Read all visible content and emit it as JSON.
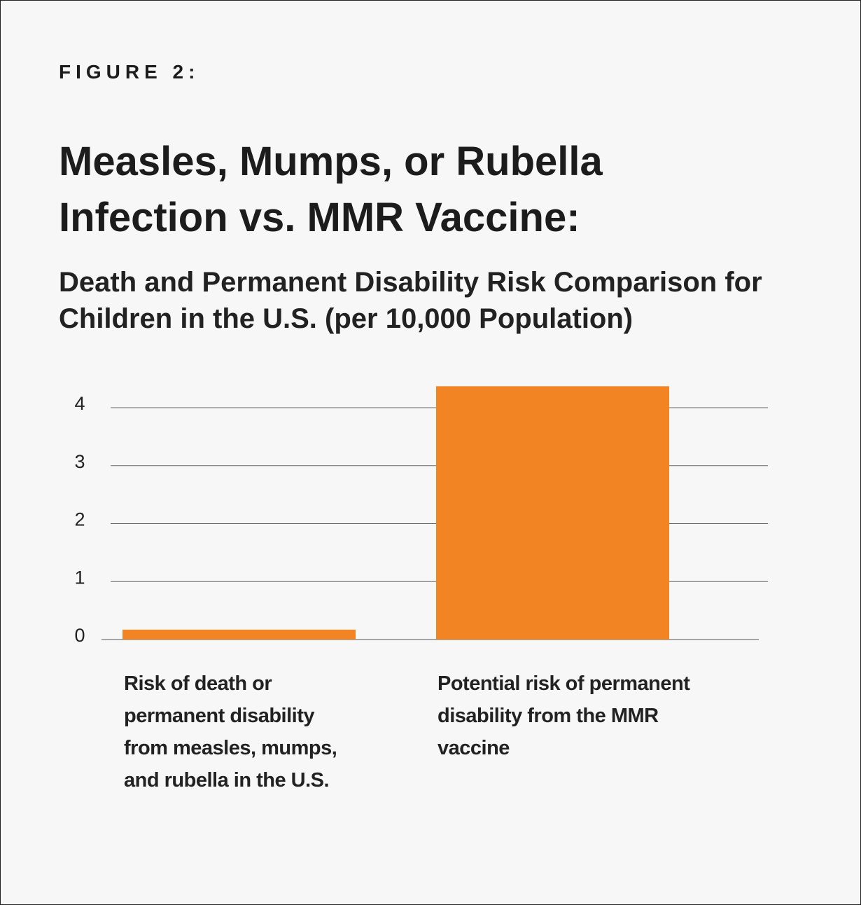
{
  "chart_data": {
    "type": "bar",
    "figure_label": "FIGURE 2:",
    "title": "Measles, Mumps, or Rubella Infection vs. MMR Vaccine:",
    "subtitle": "Death and Permanent Disability Risk Comparison for Children in the U.S. (per 10,000 Population)",
    "categories": [
      "Risk of death or permanent disability from measles, mumps, and rubella in the U.S.",
      "Potential risk of permanent disability from the MMR vaccine"
    ],
    "values": [
      0.17,
      4.37
    ],
    "color": "#f28424",
    "ylim": [
      0,
      4.4
    ],
    "yticks": [
      0,
      1,
      2,
      3,
      4
    ],
    "grid": true
  }
}
